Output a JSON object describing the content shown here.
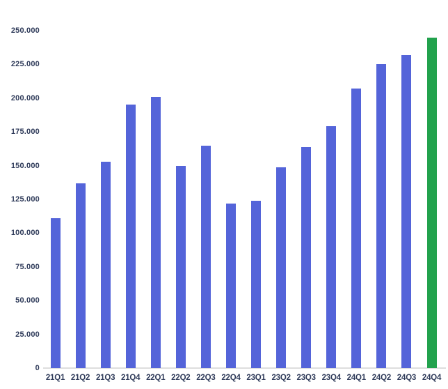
{
  "chart_data": {
    "type": "bar",
    "title": "",
    "xlabel": "",
    "ylabel": "",
    "categories": [
      "21Q1",
      "21Q2",
      "21Q3",
      "21Q4",
      "22Q1",
      "22Q2",
      "22Q3",
      "22Q4",
      "23Q1",
      "23Q2",
      "23Q3",
      "23Q4",
      "24Q1",
      "24Q2",
      "24Q3",
      "24Q4"
    ],
    "values": [
      111000,
      137000,
      153000,
      195000,
      201000,
      150000,
      165000,
      122000,
      124000,
      149000,
      164000,
      179000,
      207000,
      225000,
      232000,
      245000
    ],
    "highlight_category": "24Q4",
    "ylim": [
      0,
      250000
    ],
    "y_tick_values": [
      0,
      25000,
      50000,
      75000,
      100000,
      125000,
      150000,
      175000,
      200000,
      225000,
      250000
    ],
    "y_tick_labels": [
      "0",
      "25.000",
      "50.000",
      "75.000",
      "100.000",
      "125.000",
      "150.000",
      "175.000",
      "200.000",
      "225.000",
      "250.000"
    ],
    "grid": false,
    "legend_position": "none",
    "colors": {
      "bar_default": "#5464d9",
      "bar_highlight": "#22a24d",
      "tick_label": "#2e3a59",
      "axis_line": "#dedede",
      "background": "#ffffff"
    }
  }
}
